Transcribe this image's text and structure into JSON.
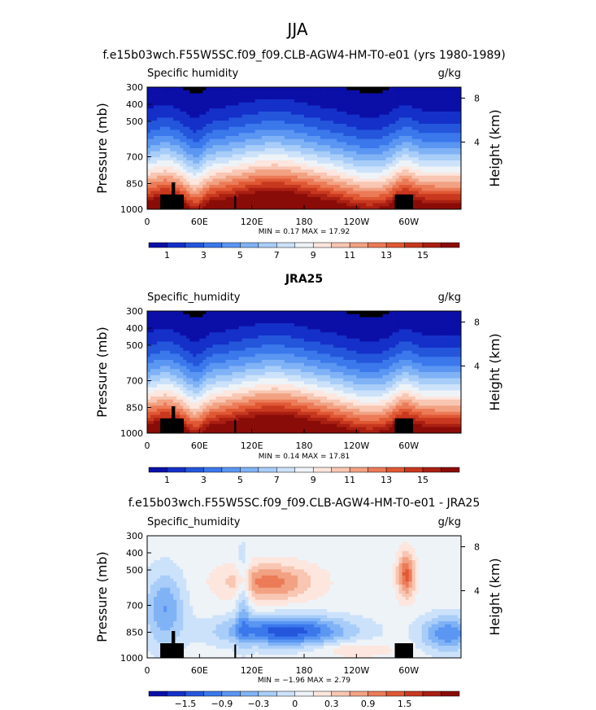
{
  "figure": {
    "title": "JJA"
  },
  "colors": {
    "abs_scale": [
      "#0b0fa8",
      "#1430c8",
      "#2456dc",
      "#3b78ec",
      "#5a96f2",
      "#80b2f6",
      "#a8cdf8",
      "#cce2fa",
      "#eef3f8",
      "#fce6de",
      "#f8c6b2",
      "#f2a283",
      "#ec7b58",
      "#e05834",
      "#c8381f",
      "#a91f12",
      "#8a0c08"
    ],
    "diff_scale": [
      "#0b0fa8",
      "#1430c8",
      "#2456dc",
      "#3b78ec",
      "#5a96f2",
      "#80b2f6",
      "#a8cdf8",
      "#cce2fa",
      "#eef3f8",
      "#fce6de",
      "#f8c6b2",
      "#f2a283",
      "#ec7b58",
      "#e05834",
      "#c8381f",
      "#a91f12",
      "#8a0c08"
    ],
    "terrain": "#000000"
  },
  "chart_data": [
    {
      "type": "heatmap",
      "title": "f.e15b03wch.F55W5SC.f09_f09.CLB-AGW4-HM-T0-e01 (yrs 1980-1989)",
      "left_label": "Specific humidity",
      "units": "g/kg",
      "ylabel": "Pressure (mb)",
      "y2label": "Height (km)",
      "xticks": [
        "0",
        "60E",
        "120E",
        "180",
        "120W",
        "60W"
      ],
      "yticks": [
        "300",
        "400",
        "500",
        "700",
        "850",
        "1000"
      ],
      "y2ticks": [
        "8",
        "4"
      ],
      "stats": "MIN =    0.17   MAX =   17.92",
      "min": 0.17,
      "max": 17.92,
      "colorbar_labels": [
        "1",
        "3",
        "5",
        "7",
        "9",
        "11",
        "13",
        "15"
      ]
    },
    {
      "type": "heatmap",
      "title": "JRA25",
      "left_label": "Specific_humidity",
      "units": "g/kg",
      "ylabel": "Pressure (mb)",
      "y2label": "Height (km)",
      "xticks": [
        "0",
        "60E",
        "120E",
        "180",
        "120W",
        "60W"
      ],
      "yticks": [
        "300",
        "400",
        "500",
        "700",
        "850",
        "1000"
      ],
      "y2ticks": [
        "8",
        "4"
      ],
      "stats": "MIN =    0.14   MAX =   17.81",
      "min": 0.14,
      "max": 17.81,
      "colorbar_labels": [
        "1",
        "3",
        "5",
        "7",
        "9",
        "11",
        "13",
        "15"
      ]
    },
    {
      "type": "heatmap",
      "title": "f.e15b03wch.F55W5SC.f09_f09.CLB-AGW4-HM-T0-e01 - JRA25",
      "left_label": "Specific_humidity",
      "units": "g/kg",
      "ylabel": "Pressure (mb)",
      "y2label": "Height (km)",
      "xticks": [
        "0",
        "60E",
        "120E",
        "180",
        "120W",
        "60W"
      ],
      "yticks": [
        "300",
        "400",
        "500",
        "700",
        "850",
        "1000"
      ],
      "y2ticks": [
        "8",
        "4"
      ],
      "stats": "MIN =   −1.96   MAX =    2.79",
      "min": -1.96,
      "max": 2.79,
      "colorbar_labels": [
        "−1.5",
        "−0.9",
        "−0.3",
        "0",
        "0.3",
        "0.9",
        "1.5"
      ]
    }
  ]
}
